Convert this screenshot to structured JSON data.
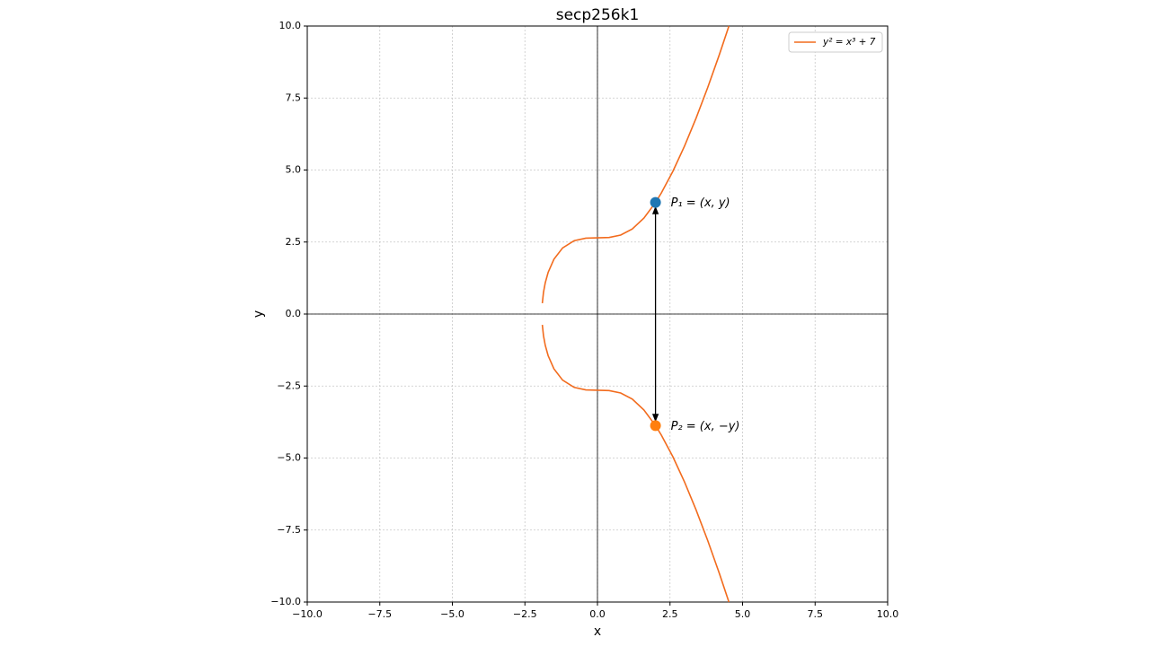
{
  "chart_data": {
    "type": "line",
    "title": "secp256k1",
    "x_label": "x",
    "y_label": "y",
    "xlim": [
      -10,
      10
    ],
    "ylim": [
      -10,
      10
    ],
    "xticks": [
      {
        "value": -10,
        "label": "−10.0"
      },
      {
        "value": -7.5,
        "label": "−7.5"
      },
      {
        "value": -5,
        "label": "−5.0"
      },
      {
        "value": -2.5,
        "label": "−2.5"
      },
      {
        "value": 0,
        "label": "0.0"
      },
      2.5,
      {
        "value": 5,
        "label": "5.0"
      },
      7.5,
      {
        "value": 10,
        "label": "10.0"
      }
    ],
    "yticks": [
      {
        "value": -10,
        "label": "−10.0"
      },
      {
        "value": -7.5,
        "label": "−7.5"
      },
      {
        "value": -5,
        "label": "−5.0"
      },
      {
        "value": -2.5,
        "label": "−2.5"
      },
      {
        "value": 0,
        "label": "0.0"
      },
      2.5,
      {
        "value": 5,
        "label": "5.0"
      },
      7.5,
      {
        "value": 10,
        "label": "10.0"
      }
    ],
    "grid": true,
    "legend": "upper right",
    "series": [
      {
        "name": "y² = x³ + 7",
        "color": "#f26b1d",
        "x": [
          4.53,
          4.2,
          3.8,
          3.4,
          3.0,
          2.6,
          2.2,
          2.0,
          1.6,
          1.2,
          0.8,
          0.4,
          0,
          -0.4,
          -0.8,
          -1.2,
          -1.5,
          -1.7,
          -1.8,
          -1.86,
          -1.9,
          null,
          -1.9,
          -1.86,
          -1.8,
          -1.7,
          -1.5,
          -1.2,
          -0.8,
          -0.4,
          0,
          0.4,
          0.8,
          1.2,
          1.6,
          2.0,
          2.2,
          2.6,
          3.0,
          3.4,
          3.8,
          4.2,
          4.53
        ],
        "values": [
          10.0,
          9.005,
          7.866,
          6.805,
          5.831,
          4.957,
          4.201,
          3.873,
          3.331,
          2.954,
          2.741,
          2.658,
          2.646,
          2.634,
          2.547,
          2.296,
          1.904,
          1.445,
          1.081,
          0.752,
          0.375,
          null,
          -0.375,
          -0.752,
          -1.081,
          -1.445,
          -1.904,
          -2.296,
          -2.547,
          -2.634,
          -2.646,
          -2.658,
          -2.741,
          -2.954,
          -3.331,
          -3.873,
          -4.201,
          -4.957,
          -5.831,
          -6.805,
          -7.866,
          -9.005,
          -10.0
        ]
      }
    ],
    "points": [
      {
        "label": "P₁ = (x, y)",
        "x": 2.0,
        "y": 3.873,
        "color": "#1f77b4"
      },
      {
        "label": "P₂ = (x, −y)",
        "x": 2.0,
        "y": -3.873,
        "color": "#ff7f0e"
      }
    ]
  }
}
